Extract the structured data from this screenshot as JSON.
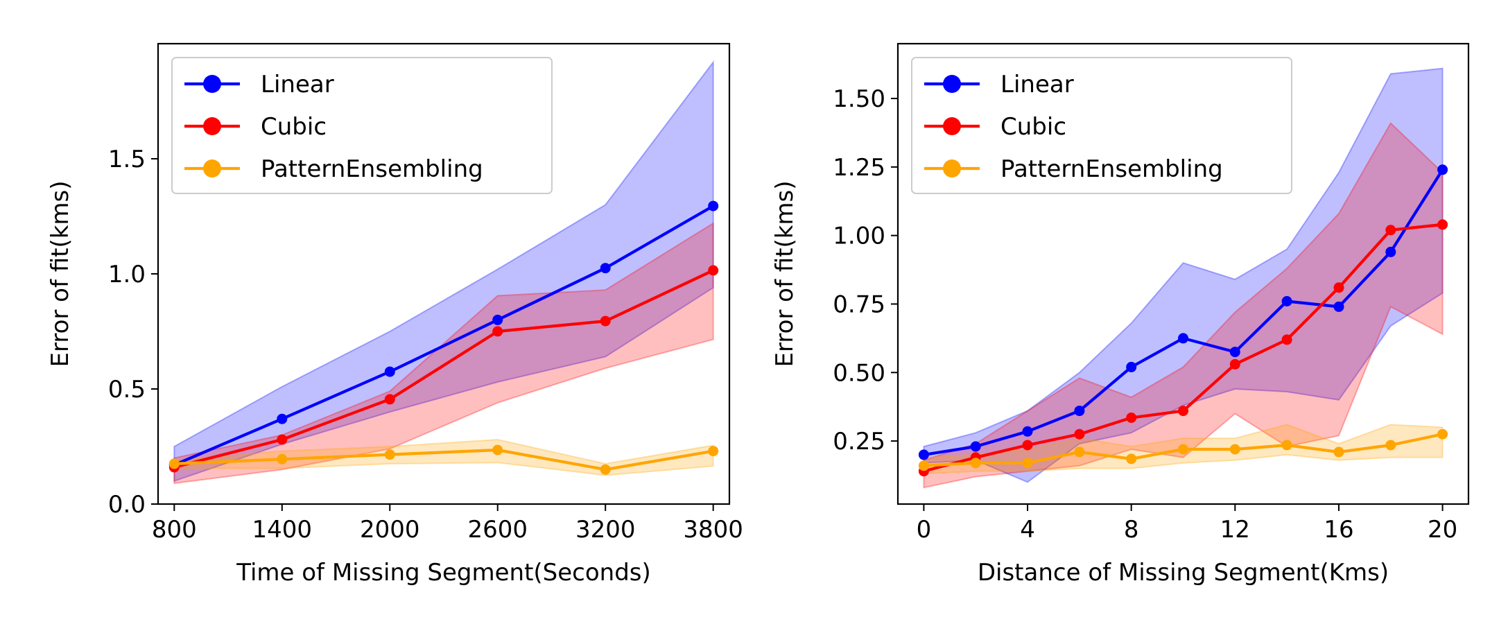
{
  "chart_data": [
    {
      "type": "line",
      "title": "",
      "xlabel": "Time of Missing Segment(Seconds)",
      "ylabel": "Error of fit(kms)",
      "xlim": [
        710,
        3890
      ],
      "ylim": [
        0.0,
        2.0
      ],
      "x": [
        800,
        1400,
        2000,
        2600,
        3200,
        3800
      ],
      "xticks": [
        800,
        1400,
        2000,
        2600,
        3200,
        3800
      ],
      "xtick_labels": [
        "800",
        "1400",
        "2000",
        "2600",
        "3200",
        "3800"
      ],
      "yticks": [
        0.0,
        0.5,
        1.0,
        1.5
      ],
      "ytick_labels": [
        "0.0",
        "0.5",
        "1.0",
        "1.5"
      ],
      "legend": "top-left",
      "series": [
        {
          "name": "Linear",
          "color": "#0000ff",
          "values": [
            0.17,
            0.37,
            0.575,
            0.8,
            1.025,
            1.295
          ],
          "upper": [
            0.25,
            0.51,
            0.75,
            1.02,
            1.3,
            1.92
          ],
          "lower": [
            0.1,
            0.26,
            0.4,
            0.53,
            0.64,
            0.94
          ]
        },
        {
          "name": "Cubic",
          "color": "#ff0000",
          "values": [
            0.16,
            0.28,
            0.455,
            0.75,
            0.795,
            1.015
          ],
          "upper": [
            0.2,
            0.3,
            0.49,
            0.905,
            0.93,
            1.22
          ],
          "lower": [
            0.09,
            0.15,
            0.24,
            0.44,
            0.59,
            0.715
          ]
        },
        {
          "name": "PatternEnsembling",
          "color": "#ffa500",
          "values": [
            0.175,
            0.195,
            0.215,
            0.235,
            0.15,
            0.23
          ],
          "upper": [
            0.19,
            0.23,
            0.25,
            0.28,
            0.175,
            0.255
          ],
          "lower": [
            0.155,
            0.155,
            0.175,
            0.18,
            0.125,
            0.165
          ]
        }
      ]
    },
    {
      "type": "line",
      "title": "",
      "xlabel": "Distance of Missing Segment(Kms)",
      "ylabel": "Error of fit(kms)",
      "xlim": [
        -1,
        21
      ],
      "ylim": [
        0.02,
        1.7
      ],
      "x": [
        0,
        2,
        4,
        6,
        8,
        10,
        12,
        14,
        16,
        18,
        20
      ],
      "xticks": [
        0,
        4,
        8,
        12,
        16,
        20
      ],
      "xtick_labels": [
        "0",
        "4",
        "8",
        "12",
        "16",
        "20"
      ],
      "yticks": [
        0.25,
        0.5,
        0.75,
        1.0,
        1.25,
        1.5
      ],
      "ytick_labels": [
        "0.25",
        "0.50",
        "0.75",
        "1.00",
        "1.25",
        "1.50"
      ],
      "legend": "top-left",
      "series": [
        {
          "name": "Linear",
          "color": "#0000ff",
          "values": [
            0.2,
            0.23,
            0.285,
            0.36,
            0.52,
            0.625,
            0.575,
            0.76,
            0.74,
            0.94,
            1.24
          ],
          "upper": [
            0.23,
            0.28,
            0.36,
            0.5,
            0.68,
            0.9,
            0.84,
            0.95,
            1.23,
            1.59,
            1.61
          ],
          "lower": [
            0.17,
            0.18,
            0.1,
            0.24,
            0.28,
            0.38,
            0.44,
            0.43,
            0.4,
            0.67,
            0.79
          ]
        },
        {
          "name": "Cubic",
          "color": "#ff0000",
          "values": [
            0.14,
            0.19,
            0.235,
            0.275,
            0.335,
            0.36,
            0.53,
            0.62,
            0.81,
            1.02,
            1.04
          ],
          "upper": [
            0.18,
            0.24,
            0.36,
            0.48,
            0.41,
            0.52,
            0.72,
            0.88,
            1.08,
            1.41,
            1.23
          ],
          "lower": [
            0.08,
            0.12,
            0.14,
            0.16,
            0.22,
            0.19,
            0.35,
            0.23,
            0.27,
            0.74,
            0.64
          ]
        },
        {
          "name": "PatternEnsembling",
          "color": "#ffa500",
          "values": [
            0.16,
            0.17,
            0.17,
            0.21,
            0.185,
            0.22,
            0.22,
            0.235,
            0.21,
            0.235,
            0.275
          ],
          "upper": [
            0.19,
            0.2,
            0.22,
            0.26,
            0.23,
            0.26,
            0.26,
            0.31,
            0.24,
            0.31,
            0.3
          ],
          "lower": [
            0.13,
            0.14,
            0.14,
            0.15,
            0.15,
            0.17,
            0.18,
            0.2,
            0.18,
            0.19,
            0.19
          ]
        }
      ]
    }
  ]
}
